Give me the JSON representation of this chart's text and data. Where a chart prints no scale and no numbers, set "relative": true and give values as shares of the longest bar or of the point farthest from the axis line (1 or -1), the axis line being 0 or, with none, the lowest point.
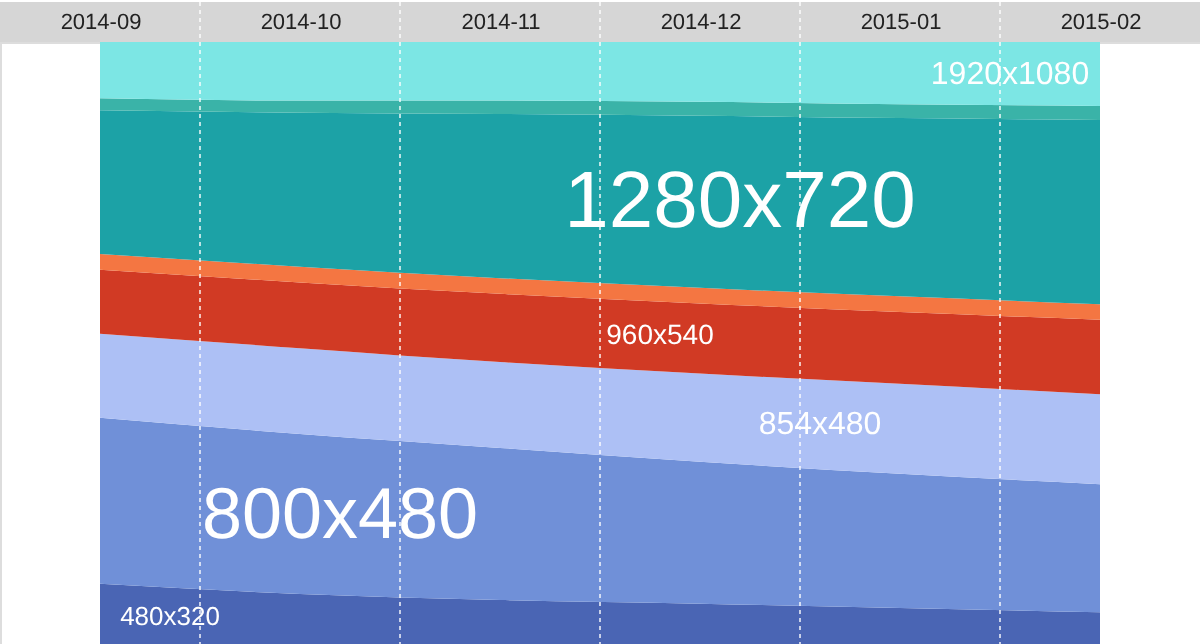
{
  "chart_data": {
    "type": "area",
    "stacked": true,
    "relative": true,
    "legend": false,
    "grid": "x",
    "categories": [
      "2014-09",
      "2014-10",
      "2014-11",
      "2014-12",
      "2015-01",
      "2015-02"
    ],
    "series": [
      {
        "name": "480x320",
        "color": "#4a65b4",
        "values": [
          0.103,
          0.086,
          0.076,
          0.07,
          0.063,
          0.056
        ]
      },
      {
        "name": "800x480",
        "color": "#7090d8",
        "values": [
          0.275,
          0.265,
          0.252,
          0.235,
          0.222,
          0.212
        ]
      },
      {
        "name": "854x480",
        "color": "#adc0f5",
        "values": [
          0.139,
          0.142,
          0.142,
          0.146,
          0.149,
          0.149
        ]
      },
      {
        "name": "960x540",
        "color": "#d13a24",
        "values": [
          0.106,
          0.109,
          0.113,
          0.116,
          0.119,
          0.123
        ]
      },
      {
        "color": "#f47642",
        "values": [
          0.026,
          0.026,
          0.026,
          0.026,
          0.026,
          0.026
        ]
      },
      {
        "name": "1280x720",
        "color": "#1ca2a6",
        "values": [
          0.238,
          0.255,
          0.272,
          0.285,
          0.295,
          0.305
        ]
      },
      {
        "color": "#3ab3a8",
        "values": [
          0.02,
          0.02,
          0.022,
          0.023,
          0.023,
          0.023
        ]
      },
      {
        "name": "1920x1080",
        "color": "#7ce6e4",
        "values": [
          0.093,
          0.097,
          0.097,
          0.099,
          0.103,
          0.106
        ]
      }
    ]
  }
}
